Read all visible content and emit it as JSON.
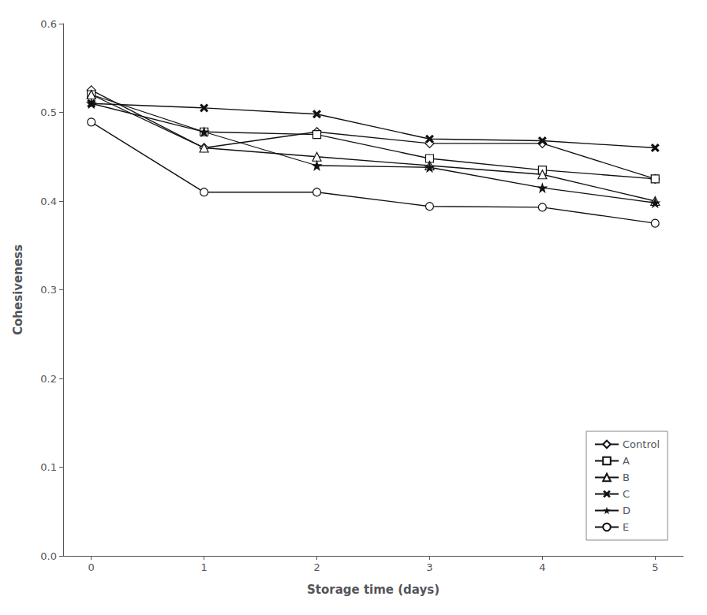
{
  "chart_data": {
    "type": "line",
    "x_label": "Storage time (days)",
    "y_label": "Cohesiveness",
    "x": [
      0,
      1,
      2,
      3,
      4,
      5
    ],
    "series": [
      {
        "name": "Control",
        "color": "#111111",
        "marker": "diamond",
        "values": [
          0.525,
          0.46,
          0.478,
          0.465,
          0.465,
          0.425
        ]
      },
      {
        "name": "A",
        "color": "#111111",
        "marker": "square",
        "values": [
          0.52,
          0.478,
          0.475,
          0.448,
          0.435,
          0.425
        ]
      },
      {
        "name": "B",
        "color": "#111111",
        "marker": "triangle",
        "values": [
          0.52,
          0.46,
          0.45,
          0.44,
          0.43,
          0.4
        ]
      },
      {
        "name": "C",
        "color": "#111111",
        "marker": "x",
        "values": [
          0.51,
          0.505,
          0.498,
          0.47,
          0.468,
          0.46
        ]
      },
      {
        "name": "D",
        "color": "#111111",
        "marker": "star",
        "values": [
          0.51,
          0.478,
          0.44,
          0.438,
          0.415,
          0.398
        ]
      },
      {
        "name": "E",
        "color": "#111111",
        "marker": "circle",
        "values": [
          0.489,
          0.41,
          0.41,
          0.394,
          0.393,
          0.375
        ]
      }
    ],
    "xlim": [
      -0.25,
      5.25
    ],
    "xticks": [
      0,
      1,
      2,
      3,
      4,
      5
    ],
    "ylim": [
      0.0,
      0.6
    ],
    "yticks": [
      {
        "value": 0.0,
        "label": "0.0"
      },
      0.1,
      0.2,
      0.3,
      0.4,
      0.5,
      0.6
    ],
    "grid": false,
    "legend": "lower right"
  }
}
